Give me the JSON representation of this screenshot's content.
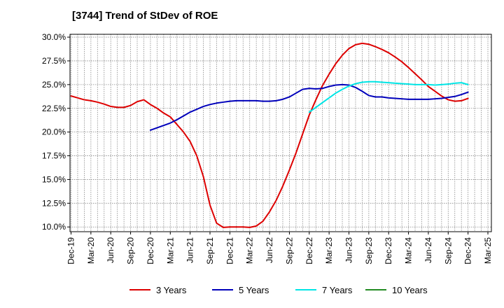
{
  "chart_data": {
    "type": "line",
    "title": "[3744]  Trend of StDev of ROE",
    "xlabel": "",
    "ylabel": "",
    "x_ticks": [
      "Dec-19",
      "Mar-20",
      "Jun-20",
      "Sep-20",
      "Dec-20",
      "Mar-21",
      "Jun-21",
      "Sep-21",
      "Dec-21",
      "Mar-22",
      "Jun-22",
      "Sep-22",
      "Dec-22",
      "Mar-23",
      "Jun-23",
      "Sep-23",
      "Dec-23",
      "Mar-24",
      "Jun-24",
      "Sep-24",
      "Dec-24",
      "Mar-25"
    ],
    "y_ticks": [
      "10.0%",
      "12.5%",
      "15.0%",
      "17.5%",
      "20.0%",
      "22.5%",
      "25.0%",
      "27.5%",
      "30.0%"
    ],
    "ylim": [
      9.5,
      30.3
    ],
    "grid": true,
    "legend_position": "bottom",
    "series": [
      {
        "name": "3 Years",
        "color": "#dd0000",
        "x": [
          "Dec-19",
          "Jan-20",
          "Feb-20",
          "Mar-20",
          "Apr-20",
          "May-20",
          "Jun-20",
          "Jul-20",
          "Aug-20",
          "Sep-20",
          "Oct-20",
          "Nov-20",
          "Dec-20",
          "Jan-21",
          "Feb-21",
          "Mar-21",
          "Apr-21",
          "May-21",
          "Jun-21",
          "Jul-21",
          "Aug-21",
          "Sep-21",
          "Oct-21",
          "Nov-21",
          "Dec-21",
          "Jan-22",
          "Feb-22",
          "Mar-22",
          "Apr-22",
          "May-22",
          "Jun-22",
          "Jul-22",
          "Aug-22",
          "Sep-22",
          "Oct-22",
          "Nov-22",
          "Dec-22",
          "Jan-23",
          "Feb-23",
          "Mar-23",
          "Apr-23",
          "May-23",
          "Jun-23",
          "Jul-23",
          "Aug-23",
          "Sep-23",
          "Oct-23",
          "Nov-23",
          "Dec-23",
          "Jan-24",
          "Feb-24",
          "Mar-24",
          "Apr-24",
          "May-24",
          "Jun-24",
          "Jul-24",
          "Aug-24",
          "Sep-24",
          "Oct-24",
          "Nov-24",
          "Dec-24"
        ],
        "values": [
          23.8,
          23.6,
          23.4,
          23.3,
          23.15,
          22.95,
          22.7,
          22.6,
          22.6,
          22.8,
          23.2,
          23.4,
          22.9,
          22.5,
          22.0,
          21.6,
          20.8,
          20.0,
          19.0,
          17.5,
          15.3,
          12.3,
          10.4,
          9.95,
          10.0,
          10.0,
          10.0,
          9.95,
          10.1,
          10.6,
          11.6,
          12.8,
          14.3,
          16.0,
          17.8,
          19.8,
          21.8,
          23.4,
          24.9,
          26.1,
          27.2,
          28.1,
          28.8,
          29.2,
          29.35,
          29.25,
          29.0,
          28.7,
          28.35,
          27.9,
          27.4,
          26.8,
          26.15,
          25.5,
          24.8,
          24.3,
          23.8,
          23.4,
          23.25,
          23.3,
          23.55
        ]
      },
      {
        "name": "5 Years",
        "color": "#0000bb",
        "x": [
          "Dec-20",
          "Jan-21",
          "Feb-21",
          "Mar-21",
          "Apr-21",
          "May-21",
          "Jun-21",
          "Jul-21",
          "Aug-21",
          "Sep-21",
          "Oct-21",
          "Nov-21",
          "Dec-21",
          "Jan-22",
          "Feb-22",
          "Mar-22",
          "Apr-22",
          "May-22",
          "Jun-22",
          "Jul-22",
          "Aug-22",
          "Sep-22",
          "Oct-22",
          "Nov-22",
          "Dec-22",
          "Jan-23",
          "Feb-23",
          "Mar-23",
          "Apr-23",
          "May-23",
          "Jun-23",
          "Jul-23",
          "Aug-23",
          "Sep-23",
          "Oct-23",
          "Nov-23",
          "Dec-23",
          "Jan-24",
          "Feb-24",
          "Mar-24",
          "Apr-24",
          "May-24",
          "Jun-24",
          "Jul-24",
          "Aug-24",
          "Sep-24",
          "Oct-24",
          "Nov-24",
          "Dec-24"
        ],
        "values": [
          20.2,
          20.45,
          20.7,
          20.95,
          21.3,
          21.7,
          22.1,
          22.4,
          22.7,
          22.9,
          23.05,
          23.15,
          23.25,
          23.3,
          23.3,
          23.3,
          23.3,
          23.25,
          23.25,
          23.3,
          23.45,
          23.7,
          24.1,
          24.5,
          24.6,
          24.55,
          24.6,
          24.8,
          24.95,
          25.0,
          24.95,
          24.7,
          24.3,
          23.85,
          23.7,
          23.7,
          23.6,
          23.55,
          23.5,
          23.45,
          23.45,
          23.45,
          23.45,
          23.5,
          23.55,
          23.65,
          23.75,
          23.95,
          24.2
        ]
      },
      {
        "name": "7 Years",
        "color": "#00e5e5",
        "x": [
          "Dec-22",
          "Jan-23",
          "Feb-23",
          "Mar-23",
          "Apr-23",
          "May-23",
          "Jun-23",
          "Jul-23",
          "Aug-23",
          "Sep-23",
          "Oct-23",
          "Nov-23",
          "Dec-23",
          "Jan-24",
          "Feb-24",
          "Mar-24",
          "Apr-24",
          "May-24",
          "Jun-24",
          "Jul-24",
          "Aug-24",
          "Sep-24",
          "Oct-24",
          "Nov-24",
          "Dec-24"
        ],
        "values": [
          22.1,
          22.6,
          23.1,
          23.6,
          24.1,
          24.5,
          24.85,
          25.1,
          25.25,
          25.3,
          25.3,
          25.25,
          25.2,
          25.15,
          25.1,
          25.05,
          25.0,
          25.0,
          25.0,
          24.95,
          25.0,
          25.05,
          25.15,
          25.2,
          25.0
        ]
      },
      {
        "name": "10 Years",
        "color": "#228B22",
        "x": [],
        "values": []
      }
    ]
  }
}
